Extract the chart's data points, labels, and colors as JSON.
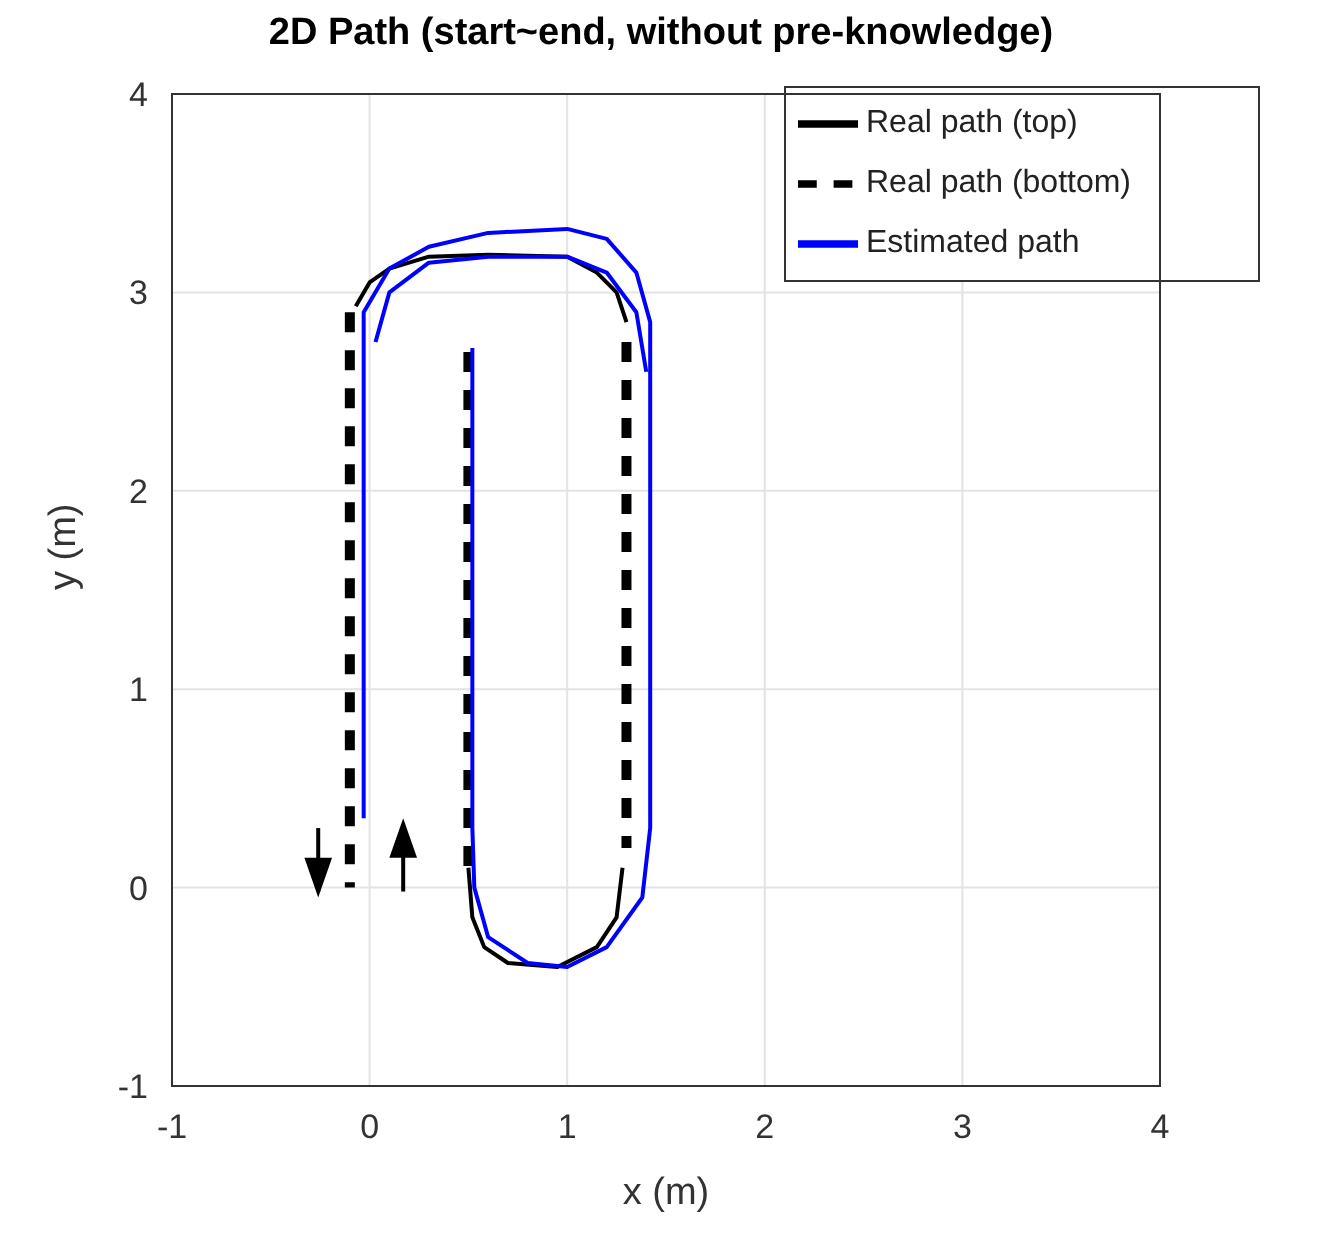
{
  "chart_data": {
    "type": "line",
    "title": "2D Path (start~end, without pre-knowledge)",
    "xlabel": "x (m)",
    "ylabel": "y (m)",
    "xlim": [
      -1,
      4
    ],
    "ylim": [
      -1,
      4
    ],
    "xticks": [
      -1,
      0,
      1,
      2,
      3,
      4
    ],
    "yticks": [
      -1,
      0,
      1,
      2,
      3,
      4
    ],
    "grid": true,
    "legend": "top right",
    "marker": "none",
    "series": [
      {
        "name": "Real path (top)",
        "color": "#000000",
        "line_style": "solid",
        "x": [
          -0.07,
          0.0,
          0.1,
          0.3,
          0.6,
          1.0,
          1.15,
          1.25,
          1.3,
          null,
          0.5,
          0.52,
          0.58,
          0.7,
          0.95,
          1.15,
          1.25,
          1.28
        ],
        "values": [
          2.93,
          3.05,
          3.12,
          3.18,
          3.19,
          3.18,
          3.1,
          3.0,
          2.85,
          null,
          0.1,
          -0.15,
          -0.3,
          -0.38,
          -0.4,
          -0.3,
          -0.15,
          0.1
        ]
      },
      {
        "name": "Real path (bottom)",
        "color": "#000000",
        "line_style": "dashed",
        "x": [
          1.3,
          1.3,
          null,
          -0.1,
          -0.1,
          null,
          0.5,
          0.5
        ],
        "values": [
          2.75,
          0.2,
          null,
          2.9,
          0.0,
          null,
          2.7,
          0.1
        ]
      },
      {
        "name": "Estimated path",
        "color": "#0000ff",
        "line_style": "solid",
        "x": [
          -0.03,
          -0.03,
          0.1,
          0.3,
          0.6,
          1.0,
          1.2,
          1.35,
          1.42,
          1.42,
          1.38,
          1.2,
          1.0,
          0.8,
          0.6,
          0.53,
          0.52,
          0.52,
          null,
          0.03,
          0.1,
          0.3,
          0.6,
          1.0,
          1.2,
          1.35,
          1.4
        ],
        "values": [
          0.35,
          2.9,
          3.12,
          3.23,
          3.3,
          3.32,
          3.27,
          3.1,
          2.85,
          0.3,
          -0.05,
          -0.3,
          -0.4,
          -0.38,
          -0.25,
          0.0,
          0.3,
          2.72,
          null,
          2.75,
          3.0,
          3.15,
          3.18,
          3.18,
          3.1,
          2.9,
          2.6
        ]
      }
    ]
  }
}
